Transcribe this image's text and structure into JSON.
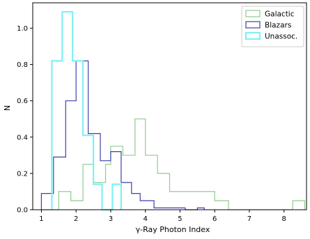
{
  "chart_data": {
    "type": "bar",
    "histogram": true,
    "xlabel": "γ-Ray Photon Index",
    "ylabel": "N",
    "xlim": [
      0.75,
      8.65
    ],
    "ylim": [
      0,
      1.14
    ],
    "xticks": [
      1,
      2,
      3,
      4,
      5,
      6,
      7,
      8
    ],
    "xtick_labels": [
      "1",
      "2",
      "3",
      "4",
      "5",
      "6",
      "7",
      "8"
    ],
    "yticks": [
      0,
      0.2,
      0.4,
      0.6,
      0.8,
      1.0
    ],
    "ytick_labels": [
      "0.0",
      "0.2",
      "0.4",
      "0.6",
      "0.8",
      "1.0"
    ],
    "grid": false,
    "legend_position": "top-right",
    "series": [
      {
        "name": "Galactic",
        "color": "#8fcb8f",
        "line_width": 1.2,
        "bin_edges": [
          1.0,
          1.2,
          1.5,
          1.85,
          2.2,
          2.5,
          2.85,
          3.0,
          3.35,
          3.7,
          4.0,
          4.35,
          4.7,
          5.0,
          6.0,
          6.4,
          8.25,
          8.6
        ],
        "counts": [
          0,
          0,
          0.1,
          0.05,
          0.25,
          0.15,
          0.25,
          0.35,
          0.3,
          0.5,
          0.3,
          0.2,
          0.1,
          0.1,
          0.05,
          0,
          0.05
        ]
      },
      {
        "name": "Blazars",
        "color": "#3f3fad",
        "line_width": 1.2,
        "bin_edges": [
          1.0,
          1.35,
          1.7,
          2.0,
          2.35,
          2.7,
          3.0,
          3.3,
          3.6,
          3.85,
          4.25,
          4.55,
          5.15,
          5.35,
          5.5,
          5.7
        ],
        "counts": [
          0.09,
          0.29,
          0.6,
          0.82,
          0.42,
          0.27,
          0.32,
          0.15,
          0.09,
          0.05,
          0.01,
          0.01,
          0,
          0,
          0.01
        ]
      },
      {
        "name": "Unassoc.",
        "color": "#7ff0f5",
        "line_width": 2.2,
        "bin_edges": [
          1.3,
          1.6,
          1.9,
          2.2,
          2.5,
          2.75,
          3.05,
          3.3
        ],
        "counts": [
          0.82,
          1.09,
          0.82,
          0.41,
          0.14,
          0,
          0.14
        ]
      }
    ]
  }
}
